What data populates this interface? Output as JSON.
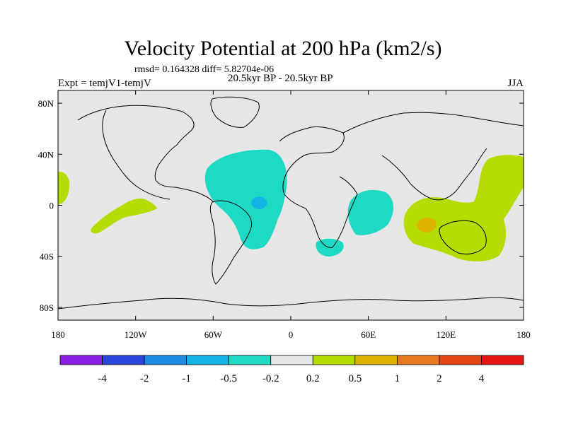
{
  "title": "Velocity Potential at 200 hPa (km2/s)",
  "stats": "rmsd= 0.164328 diff= 5.82704e-06",
  "expt": "Expt = temjV1-temjV",
  "period": "20.5kyr BP - 20.5kyr BP",
  "season": "JJA",
  "colors": {
    "ocean_land_background": "#e6e6e6",
    "neg_0_2_to_0_5": "#1ed9c3",
    "neg_0_5_to_1": "#12b4e6",
    "pos_0_2_to_0_5": "#b4dc00",
    "pos_0_5_to_1": "#dcb400",
    "coastline": "#000000"
  },
  "chart_data": {
    "type": "map",
    "projection": "cylindrical-equidistant",
    "lon_range": [
      -180,
      180
    ],
    "lat_range": [
      -90,
      90
    ],
    "lon_ticks": [
      {
        "value": -180,
        "label": "180"
      },
      {
        "value": -120,
        "label": "120W"
      },
      {
        "value": -60,
        "label": "60W"
      },
      {
        "value": 0,
        "label": "0"
      },
      {
        "value": 60,
        "label": "60E"
      },
      {
        "value": 120,
        "label": "120E"
      },
      {
        "value": 180,
        "label": "180"
      }
    ],
    "lat_ticks": [
      {
        "value": 80,
        "label": "80N"
      },
      {
        "value": 40,
        "label": "40N"
      },
      {
        "value": 0,
        "label": "0"
      },
      {
        "value": -40,
        "label": "40S"
      },
      {
        "value": -80,
        "label": "80S"
      }
    ],
    "colorbar": {
      "colors": [
        "#8c1ee6",
        "#2846dc",
        "#1e8ce6",
        "#12b4e6",
        "#1ed9c3",
        "#e6e6e6",
        "#b4dc00",
        "#dcb400",
        "#e6781e",
        "#e64614",
        "#e61414"
      ],
      "labels": [
        "-4",
        "-2",
        "-1",
        "-0.5",
        "-0.2",
        "0.2",
        "0.5",
        "1",
        "2",
        "4"
      ]
    },
    "regions": [
      {
        "name": "atlantic-negative",
        "level": "-0.5 to -0.2",
        "color": "#1ed9c3"
      },
      {
        "name": "atlantic-negative-core",
        "level": "-1 to -0.5",
        "color": "#12b4e6"
      },
      {
        "name": "indian-ocean-negative",
        "level": "-0.5 to -0.2",
        "color": "#1ed9c3"
      },
      {
        "name": "south-africa-negative",
        "level": "-0.5 to -0.2",
        "color": "#1ed9c3"
      },
      {
        "name": "pacific-west-positive",
        "level": "0.2 to 0.5",
        "color": "#b4dc00"
      },
      {
        "name": "maritime-continent-positive",
        "level": "0.2 to 0.5",
        "color": "#b4dc00"
      },
      {
        "name": "maritime-core-positive",
        "level": "0.5 to 1",
        "color": "#dcb400"
      },
      {
        "name": "east-pacific-positive",
        "level": "0.2 to 0.5",
        "color": "#b4dc00"
      }
    ]
  }
}
